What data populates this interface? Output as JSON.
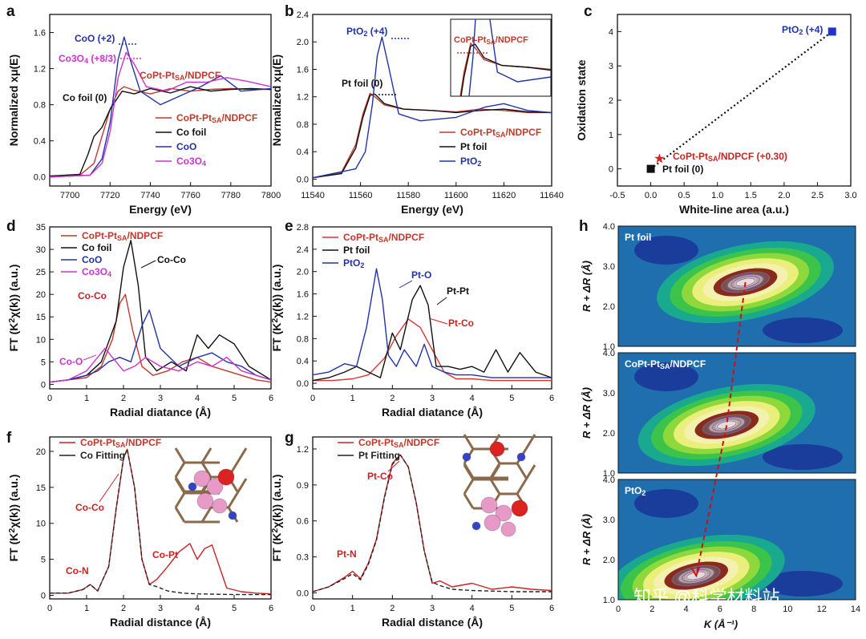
{
  "figure": {
    "panel_letters": [
      "a",
      "b",
      "c",
      "d",
      "e",
      "f",
      "g",
      "h"
    ],
    "watermark": "知乎 @科学材料站"
  },
  "chart_data": [
    {
      "id": "a",
      "type": "line",
      "xlabel": "Energy (eV)",
      "ylabel": "Normalized xμ(E)",
      "xlim": [
        7690,
        7800
      ],
      "ylim": [
        -0.1,
        1.8
      ],
      "xticks": [
        "7700",
        "7720",
        "7740",
        "7760",
        "7780",
        "7800"
      ],
      "yticks": [
        "0.0",
        "0.4",
        "0.8",
        "1.2",
        "1.6"
      ],
      "legend": [
        "CoPt-Pt_SA/NDPCF",
        "Co foil",
        "CoO",
        "Co3O4"
      ],
      "annotations": [
        "CoO (+2)",
        "Co3O4 (+8/3)",
        "CoPt-Pt_SA/NDPCF",
        "Co foil (0)"
      ],
      "series": [
        {
          "name": "CoPt-Pt_SA/NDPCF",
          "color": "#c0392b",
          "x": [
            7690,
            7705,
            7712,
            7716,
            7720,
            7724,
            7727,
            7732,
            7740,
            7750,
            7760,
            7770,
            7780,
            7790,
            7800
          ],
          "y": [
            0.01,
            0.02,
            0.15,
            0.45,
            0.75,
            0.95,
            1.0,
            0.96,
            0.92,
            0.98,
            0.95,
            0.97,
            0.98,
            0.97,
            0.97
          ]
        },
        {
          "name": "Co foil",
          "color": "#111111",
          "x": [
            7690,
            7705,
            7709,
            7712,
            7716,
            7720,
            7726,
            7732,
            7740,
            7750,
            7760,
            7770,
            7780,
            7790,
            7800
          ],
          "y": [
            0.01,
            0.03,
            0.25,
            0.45,
            0.55,
            0.75,
            0.95,
            0.92,
            0.98,
            0.93,
            1.0,
            0.95,
            0.97,
            0.98,
            0.97
          ]
        },
        {
          "name": "CoO",
          "color": "#2233aa",
          "x": [
            7690,
            7710,
            7716,
            7720,
            7724,
            7727,
            7730,
            7735,
            7745,
            7755,
            7765,
            7775,
            7785,
            7800
          ],
          "y": [
            0.0,
            0.02,
            0.2,
            0.6,
            1.3,
            1.55,
            1.3,
            0.95,
            0.8,
            0.9,
            1.0,
            1.12,
            0.95,
            0.98
          ]
        },
        {
          "name": "Co3O4",
          "color": "#cc33cc",
          "x": [
            7690,
            7710,
            7716,
            7720,
            7724,
            7728,
            7732,
            7738,
            7748,
            7758,
            7768,
            7778,
            7788,
            7800
          ],
          "y": [
            0.0,
            0.02,
            0.15,
            0.5,
            1.1,
            1.38,
            1.25,
            1.0,
            0.95,
            1.05,
            1.05,
            1.1,
            1.06,
            1.0
          ]
        }
      ]
    },
    {
      "id": "b",
      "type": "line",
      "xlabel": "Energy (eV)",
      "ylabel": "Normalized xμ(E)",
      "xlim": [
        11540,
        11640
      ],
      "ylim": [
        -0.1,
        2.4
      ],
      "xticks": [
        "11540",
        "11560",
        "11580",
        "11600",
        "11620",
        "11640"
      ],
      "yticks": [
        "0.0",
        "0.4",
        "0.8",
        "1.2",
        "1.6",
        "2.0",
        "2.4"
      ],
      "legend": [
        "CoPt-Pt_SA/NDPCF",
        "Pt foil",
        "PtO2"
      ],
      "annotations": [
        "PtO2 (+4)",
        "Pt foil (0)",
        "CoPt-Pt_SA/NDPCF"
      ],
      "series": [
        {
          "name": "CoPt-Pt_SA/NDPCF",
          "color": "#c0392b",
          "x": [
            11540,
            11552,
            11558,
            11561,
            11564,
            11566,
            11570,
            11578,
            11590,
            11600,
            11610,
            11620,
            11630,
            11640
          ],
          "y": [
            0.02,
            0.1,
            0.5,
            0.95,
            1.25,
            1.2,
            1.08,
            1.02,
            1.0,
            0.98,
            1.02,
            1.0,
            0.97,
            0.97
          ]
        },
        {
          "name": "Pt foil",
          "color": "#111111",
          "x": [
            11540,
            11552,
            11558,
            11561,
            11564,
            11566,
            11570,
            11578,
            11590,
            11600,
            11610,
            11620,
            11630,
            11640
          ],
          "y": [
            0.02,
            0.08,
            0.45,
            0.9,
            1.22,
            1.24,
            1.1,
            1.02,
            1.0,
            0.97,
            1.0,
            1.02,
            0.98,
            0.97
          ]
        },
        {
          "name": "PtO2",
          "color": "#2233aa",
          "x": [
            11540,
            11558,
            11562,
            11565,
            11567,
            11569,
            11572,
            11576,
            11585,
            11600,
            11612,
            11620,
            11630,
            11640
          ],
          "y": [
            0.02,
            0.15,
            0.4,
            1.1,
            1.8,
            2.07,
            1.6,
            0.95,
            0.85,
            0.9,
            1.05,
            1.1,
            1.0,
            0.97
          ]
        }
      ]
    },
    {
      "id": "c",
      "type": "scatter",
      "xlabel": "White-line area (a.u.)",
      "ylabel": "Oxidation state",
      "xlim": [
        -0.5,
        3.0
      ],
      "ylim": [
        -0.5,
        4.5
      ],
      "xticks": [
        "-0.5",
        "0.0",
        "0.5",
        "1.0",
        "1.5",
        "2.0",
        "2.5",
        "3.0"
      ],
      "yticks": [
        "0",
        "1",
        "2",
        "3",
        "4"
      ],
      "points": [
        {
          "label": "Pt foil (0)",
          "x": 0.0,
          "y": 0.0,
          "color": "#111111",
          "marker": "square"
        },
        {
          "label": "CoPt-Pt_SA/NDPCF (+0.30)",
          "x": 0.13,
          "y": 0.3,
          "color": "#dd2222",
          "marker": "star"
        },
        {
          "label": "PtO2 (+4)",
          "x": 2.72,
          "y": 4.0,
          "color": "#2233cc",
          "marker": "square"
        }
      ]
    },
    {
      "id": "d",
      "type": "line",
      "xlabel": "Radial diatance (Å)",
      "ylabel": "FT (K²χ(k)) (a.u.)",
      "xlim": [
        0,
        6
      ],
      "ylim": [
        -1,
        35
      ],
      "xticks": [
        "0",
        "1",
        "2",
        "3",
        "4",
        "5",
        "6"
      ],
      "yticks": [
        "0",
        "5",
        "10",
        "15",
        "20",
        "25",
        "30",
        "35"
      ],
      "legend": [
        "CoPt-Pt_SA/NDPCF",
        "Co foil",
        "CoO",
        "Co3O4"
      ],
      "annotations": [
        "Co-Co",
        "Co-Co",
        "Co-O"
      ],
      "series": [
        {
          "name": "CoPt-Pt_SA/NDPCF",
          "color": "#c0392b",
          "x": [
            0,
            0.5,
            1.0,
            1.4,
            1.7,
            1.9,
            2.05,
            2.25,
            2.5,
            2.8,
            3.2,
            3.6,
            4.0,
            4.4,
            4.8,
            5.2,
            5.6,
            6.0
          ],
          "y": [
            0.5,
            1,
            1.5,
            4,
            10,
            18,
            20,
            12,
            4,
            2,
            3,
            5,
            6,
            4,
            3,
            2,
            1,
            0.5
          ]
        },
        {
          "name": "Co foil",
          "color": "#111111",
          "x": [
            0,
            0.5,
            1.0,
            1.4,
            1.8,
            2.0,
            2.2,
            2.4,
            2.6,
            2.9,
            3.3,
            3.7,
            4.0,
            4.3,
            4.6,
            5.0,
            5.4,
            5.8,
            6.0
          ],
          "y": [
            0.5,
            1,
            2,
            5,
            14,
            26,
            32,
            22,
            6,
            3,
            5,
            3,
            11,
            8,
            11,
            9,
            4,
            2,
            1
          ]
        },
        {
          "name": "CoO",
          "color": "#2233aa",
          "x": [
            0,
            0.5,
            1.0,
            1.3,
            1.6,
            1.9,
            2.2,
            2.5,
            2.7,
            3.0,
            3.5,
            4.0,
            4.4,
            4.8,
            5.2,
            5.6,
            6.0
          ],
          "y": [
            0.5,
            1,
            2,
            3,
            5,
            6,
            5,
            13,
            16.5,
            8,
            4,
            6,
            7,
            5,
            4,
            2,
            1
          ]
        },
        {
          "name": "Co3O4",
          "color": "#cc33cc",
          "x": [
            0,
            0.5,
            1.0,
            1.3,
            1.5,
            1.7,
            2.0,
            2.3,
            2.6,
            3.0,
            3.5,
            4.0,
            4.4,
            4.8,
            5.2,
            5.6,
            6.0
          ],
          "y": [
            0.5,
            1,
            3,
            6,
            8,
            6,
            3,
            4,
            6,
            4,
            3,
            5,
            4,
            6,
            3,
            2,
            1
          ]
        }
      ]
    },
    {
      "id": "e",
      "type": "line",
      "xlabel": "Radial diatance (Å)",
      "ylabel": "FT (K²χ(k)) (a.u.)",
      "xlim": [
        0,
        6
      ],
      "ylim": [
        -0.1,
        2.8
      ],
      "xticks": [
        "0",
        "1",
        "2",
        "3",
        "4",
        "5",
        "6"
      ],
      "yticks": [
        "0.0",
        "0.4",
        "0.8",
        "1.2",
        "1.6",
        "2.0",
        "2.4",
        "2.8"
      ],
      "legend": [
        "CoPt-Pt_SA/NDPCF",
        "Pt foil",
        "PtO2"
      ],
      "annotations": [
        "Pt-O",
        "Pt-Pt",
        "Pt-Co"
      ],
      "series": [
        {
          "name": "CoPt-Pt_SA/NDPCF",
          "color": "#dd3333",
          "x": [
            0,
            0.5,
            1.0,
            1.4,
            1.8,
            2.1,
            2.4,
            2.7,
            3.0,
            3.3,
            3.6,
            4.0,
            4.5,
            5.0,
            5.5,
            6.0
          ],
          "y": [
            0.05,
            0.05,
            0.08,
            0.15,
            0.45,
            0.85,
            1.15,
            1.0,
            0.6,
            0.2,
            0.08,
            0.08,
            0.05,
            0.05,
            0.05,
            0.05
          ]
        },
        {
          "name": "Pt foil",
          "color": "#111111",
          "x": [
            0,
            0.4,
            0.8,
            1.1,
            1.4,
            1.7,
            2.0,
            2.2,
            2.5,
            2.7,
            2.9,
            3.1,
            3.4,
            3.7,
            4.0,
            4.3,
            4.6,
            4.9,
            5.2,
            5.6,
            6.0
          ],
          "y": [
            0.05,
            0.1,
            0.2,
            0.3,
            0.2,
            0.1,
            0.9,
            0.6,
            1.5,
            1.75,
            1.4,
            0.3,
            0.3,
            0.25,
            0.3,
            0.2,
            0.6,
            0.2,
            0.55,
            0.2,
            0.1
          ]
        },
        {
          "name": "PtO2",
          "color": "#2233aa",
          "x": [
            0,
            0.4,
            0.8,
            1.1,
            1.35,
            1.6,
            1.75,
            1.9,
            2.1,
            2.3,
            2.6,
            2.8,
            3.0,
            3.3,
            3.6,
            4.0,
            4.5,
            5.0,
            5.5,
            6.0
          ],
          "y": [
            0.15,
            0.2,
            0.35,
            0.3,
            1.0,
            2.05,
            1.5,
            0.5,
            0.3,
            0.6,
            0.3,
            0.7,
            0.3,
            0.2,
            0.15,
            0.15,
            0.1,
            0.1,
            0.1,
            0.1
          ]
        }
      ]
    },
    {
      "id": "f",
      "type": "line",
      "xlabel": "Radial distance (Å)",
      "ylabel": "FT (K²χ(k)) (a.u.)",
      "xlim": [
        0,
        6
      ],
      "ylim": [
        -0.5,
        22
      ],
      "xticks": [
        "0",
        "1",
        "2",
        "3",
        "4",
        "5",
        "6"
      ],
      "yticks": [
        "0",
        "5",
        "10",
        "15",
        "20"
      ],
      "legend": [
        "CoPt-Pt_SA/NDPCF",
        "Co Fitting"
      ],
      "annotations": [
        "Co-Co",
        "Co-N",
        "Co-Pt"
      ],
      "series": [
        {
          "name": "CoPt-Pt_SA/NDPCF",
          "color": "#cc2222",
          "x": [
            0,
            0.5,
            0.9,
            1.1,
            1.3,
            1.6,
            1.8,
            2.0,
            2.1,
            2.3,
            2.5,
            2.7,
            2.9,
            3.2,
            3.5,
            3.8,
            4.0,
            4.2,
            4.4,
            4.6,
            4.8,
            5.2,
            5.6,
            6.0
          ],
          "y": [
            0.3,
            0.3,
            0.8,
            1.5,
            0.6,
            4,
            12,
            19,
            20.3,
            15,
            5,
            1.5,
            2.2,
            4,
            6,
            7.2,
            5,
            6.5,
            7,
            4,
            1,
            0.5,
            0.3,
            0.2
          ]
        },
        {
          "name": "Co Fitting",
          "color": "#222222",
          "dashed": true,
          "x": [
            0,
            0.5,
            0.9,
            1.1,
            1.3,
            1.6,
            1.8,
            2.0,
            2.1,
            2.3,
            2.5,
            2.7,
            2.9,
            3.2,
            3.6,
            4.0,
            5.0,
            6.0
          ],
          "y": [
            0.3,
            0.3,
            0.8,
            1.5,
            0.6,
            4,
            12,
            19,
            20.3,
            15,
            5,
            1.5,
            1.2,
            0.6,
            0.3,
            0.2,
            0.1,
            0.1
          ]
        }
      ]
    },
    {
      "id": "g",
      "type": "line",
      "xlabel": "Radial distance (Å)",
      "ylabel": "FT (K²χ(k)) (a.u.)",
      "xlim": [
        0,
        6
      ],
      "ylim": [
        -0.05,
        1.3
      ],
      "xticks": [
        "0",
        "1",
        "2",
        "3",
        "4",
        "5",
        "6"
      ],
      "yticks": [
        "0.0",
        "0.3",
        "0.6",
        "0.9",
        "1.2"
      ],
      "legend": [
        "CoPt-Pt_SA/NDPCF",
        "Pt Fitting"
      ],
      "annotations": [
        "Pt-Co",
        "Pt-N"
      ],
      "series": [
        {
          "name": "CoPt-Pt_SA/NDPCF",
          "color": "#cc2222",
          "x": [
            0,
            0.4,
            0.8,
            1.0,
            1.2,
            1.4,
            1.6,
            1.8,
            2.0,
            2.2,
            2.4,
            2.6,
            2.8,
            3.0,
            3.2,
            3.5,
            4.0,
            4.5,
            5.0,
            5.5,
            6.0
          ],
          "y": [
            0.01,
            0.05,
            0.13,
            0.18,
            0.12,
            0.25,
            0.45,
            0.8,
            1.08,
            1.15,
            1.05,
            0.75,
            0.35,
            0.08,
            0.1,
            0.05,
            0.08,
            0.03,
            0.05,
            0.03,
            0.02
          ]
        },
        {
          "name": "Pt Fitting",
          "color": "#222222",
          "dashed": true,
          "x": [
            0,
            0.4,
            0.8,
            1.0,
            1.2,
            1.4,
            1.6,
            1.8,
            2.0,
            2.2,
            2.4,
            2.6,
            2.8,
            3.0,
            3.2,
            3.5,
            4.0,
            5.0,
            6.0
          ],
          "y": [
            0.01,
            0.05,
            0.12,
            0.16,
            0.11,
            0.24,
            0.44,
            0.79,
            1.07,
            1.15,
            1.05,
            0.75,
            0.35,
            0.09,
            0.06,
            0.03,
            0.02,
            0.01,
            0.01
          ]
        }
      ]
    },
    {
      "id": "h",
      "type": "heatmap",
      "xlabel": "K (Å⁻¹)",
      "ylabel": "R + ΔR (Å)",
      "xlim": [
        0,
        14
      ],
      "xticks": [
        "0",
        "2",
        "4",
        "6",
        "8",
        "10",
        "12",
        "14"
      ],
      "subplots": [
        {
          "label": "Pt foil",
          "ylim": [
            1.0,
            4.0
          ],
          "yticks": [
            "1.0",
            "2.0",
            "3.0",
            "4.0"
          ],
          "peak": {
            "k": 7.5,
            "r": 2.6
          }
        },
        {
          "label": "CoPt-Pt_SA/NDPCF",
          "ylim": [
            1.0,
            4.0
          ],
          "yticks": [
            "1.0",
            "2.0",
            "3.0",
            "4.0"
          ],
          "peak": {
            "k": 6.4,
            "r": 2.2
          }
        },
        {
          "label": "PtO2",
          "ylim": [
            1.0,
            4.0
          ],
          "yticks": [
            "1.0",
            "2.0",
            "3.0",
            "4.0"
          ],
          "peak": {
            "k": 4.6,
            "r": 1.6
          }
        }
      ]
    }
  ]
}
